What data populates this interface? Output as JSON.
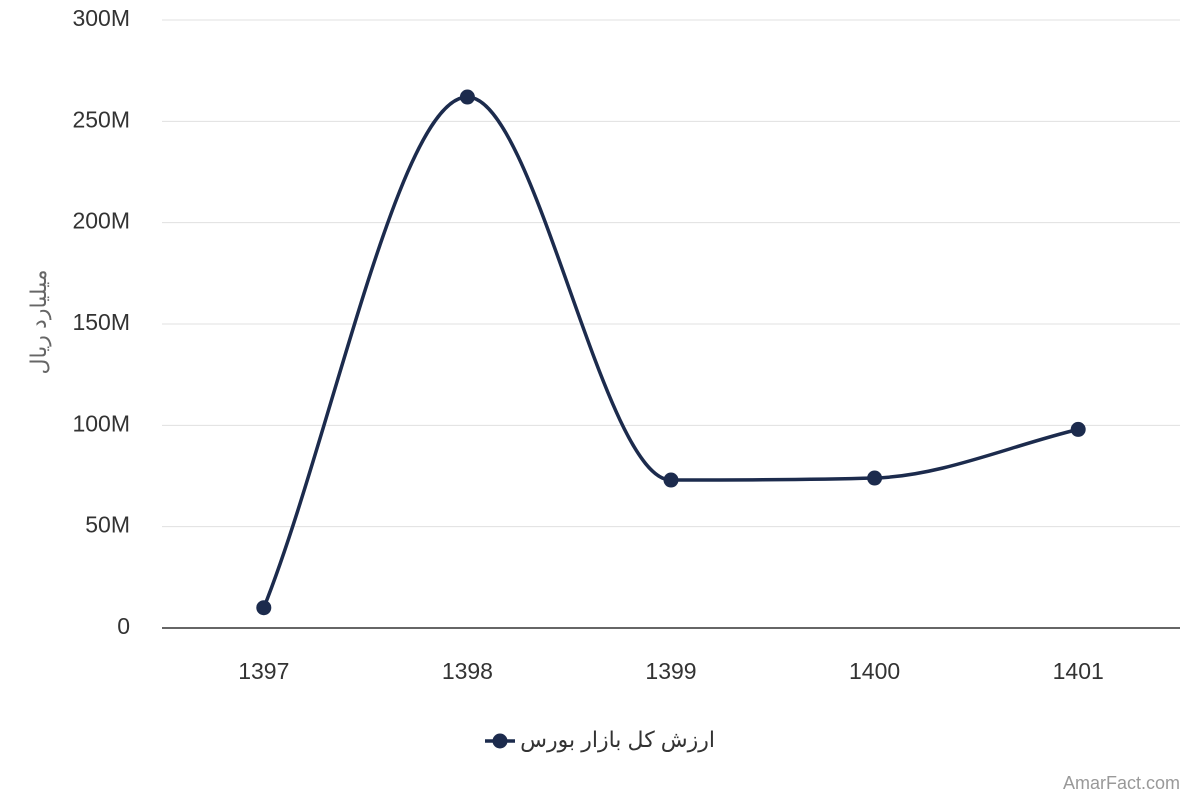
{
  "chart_data": {
    "type": "line",
    "categories": [
      "1397",
      "1398",
      "1399",
      "1400",
      "1401"
    ],
    "series": [
      {
        "name": "ارزش کل بازار بورس",
        "values": [
          10000000,
          262000000,
          73000000,
          74000000,
          98000000
        ]
      }
    ],
    "ylabel": "میلیارد ریال",
    "xlabel": "",
    "ylim": [
      0,
      300000000
    ],
    "y_ticks": [
      "0",
      "50M",
      "100M",
      "150M",
      "200M",
      "250M",
      "300M"
    ],
    "y_tick_values": [
      0,
      50000000,
      100000000,
      150000000,
      200000000,
      250000000,
      300000000
    ],
    "grid": true,
    "legend_position": "bottom-center",
    "smooth": true
  },
  "colors": {
    "series": "#1c2b4d",
    "grid": "#e0e0e0",
    "axis": "#333333"
  },
  "watermark": "AmarFact.com"
}
